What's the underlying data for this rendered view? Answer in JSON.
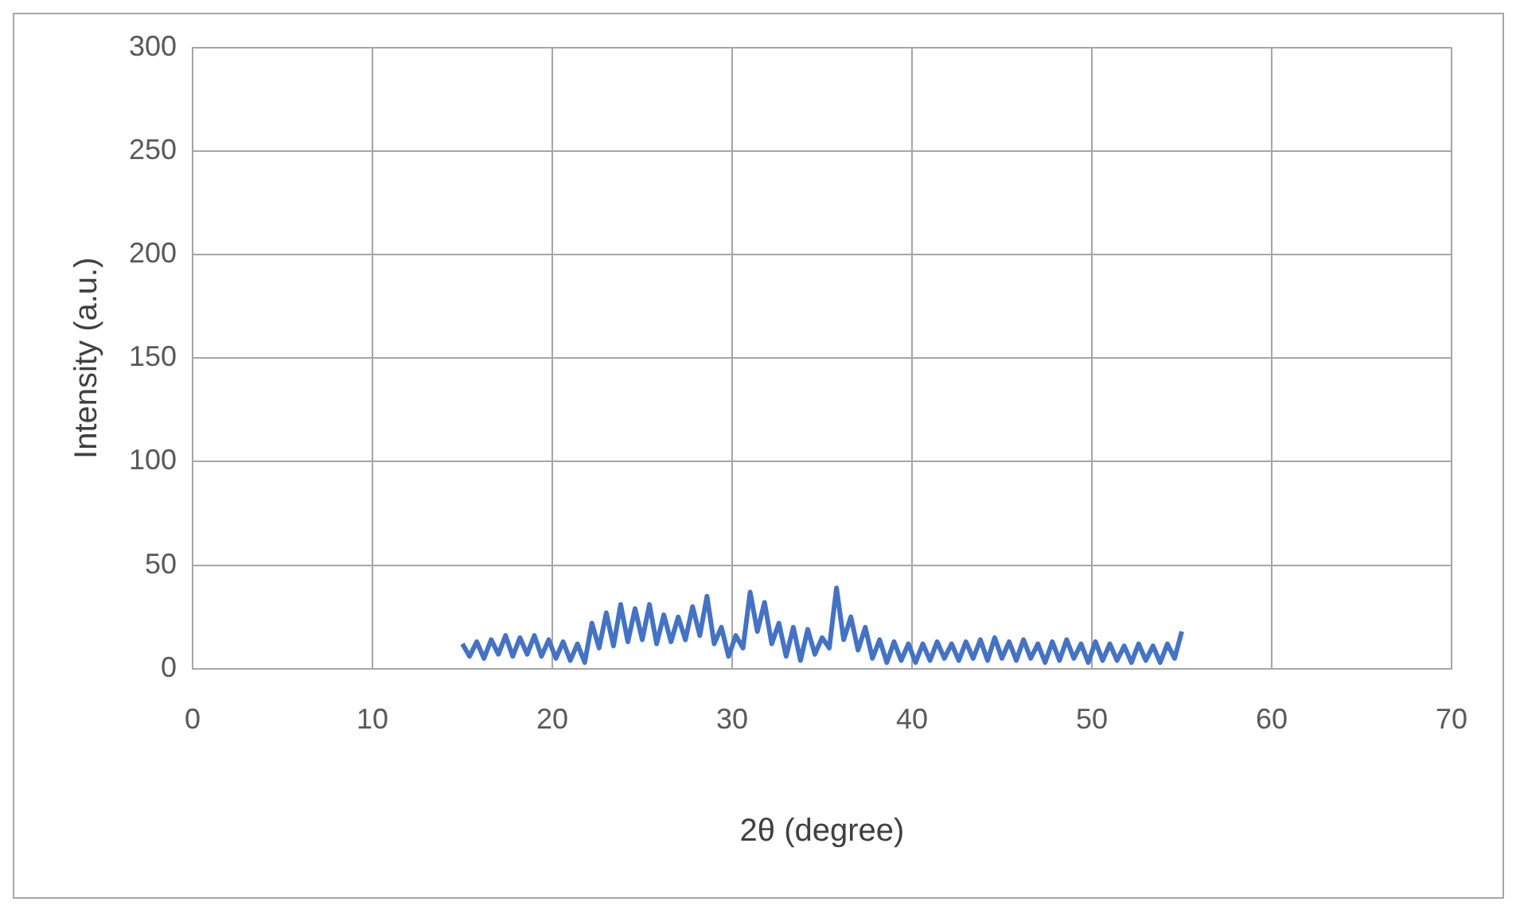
{
  "chart_data": {
    "type": "line",
    "xlabel": "2θ (degree)",
    "ylabel": "Intensity (a.u.)",
    "xlim": [
      0,
      70
    ],
    "xticks": [
      0,
      10,
      20,
      30,
      40,
      50,
      60,
      70
    ],
    "ylim": [
      0,
      300
    ],
    "yticks": [
      0,
      50,
      100,
      150,
      200,
      250,
      300
    ],
    "grid": true,
    "legend": false,
    "marker": "none",
    "line_style": "solid",
    "series": [
      {
        "color": "#4472c4",
        "x": [
          15,
          15.4,
          15.8,
          16.2,
          16.6,
          17,
          17.4,
          17.8,
          18.2,
          18.6,
          19,
          19.4,
          19.8,
          20.2,
          20.6,
          21,
          21.4,
          21.8,
          22.2,
          22.6,
          23,
          23.4,
          23.8,
          24.2,
          24.6,
          25,
          25.4,
          25.8,
          26.2,
          26.6,
          27,
          27.4,
          27.8,
          28.2,
          28.6,
          29,
          29.4,
          29.8,
          30.2,
          30.6,
          31,
          31.4,
          31.8,
          32.2,
          32.6,
          33,
          33.4,
          33.8,
          34.2,
          34.6,
          35,
          35.4,
          35.8,
          36.2,
          36.6,
          37,
          37.4,
          37.8,
          38.2,
          38.6,
          39,
          39.4,
          39.8,
          40.2,
          40.6,
          41,
          41.4,
          41.8,
          42.2,
          42.6,
          43,
          43.4,
          43.8,
          44.2,
          44.6,
          45,
          45.4,
          45.8,
          46.2,
          46.6,
          47,
          47.4,
          47.8,
          48.2,
          48.6,
          49,
          49.4,
          49.8,
          50.2,
          50.6,
          51,
          51.4,
          51.8,
          52.2,
          52.6,
          53,
          53.4,
          53.8,
          54.2,
          54.6,
          55
        ],
        "values": [
          12,
          6,
          13,
          5,
          14,
          7,
          16,
          6,
          15,
          7,
          16,
          6,
          14,
          5,
          13,
          4,
          12,
          3,
          22,
          10,
          27,
          11,
          31,
          13,
          29,
          14,
          31,
          12,
          26,
          13,
          25,
          14,
          30,
          16,
          35,
          12,
          20,
          6,
          16,
          10,
          37,
          18,
          32,
          12,
          22,
          6,
          20,
          4,
          19,
          7,
          15,
          10,
          39,
          14,
          25,
          9,
          20,
          5,
          14,
          3,
          13,
          4,
          12,
          3,
          12,
          4,
          13,
          5,
          12,
          4,
          13,
          5,
          14,
          4,
          15,
          5,
          13,
          4,
          14,
          5,
          12,
          3,
          13,
          4,
          14,
          5,
          12,
          3,
          13,
          4,
          12,
          4,
          11,
          3,
          12,
          4,
          11,
          3,
          12,
          5,
          18
        ]
      }
    ]
  }
}
